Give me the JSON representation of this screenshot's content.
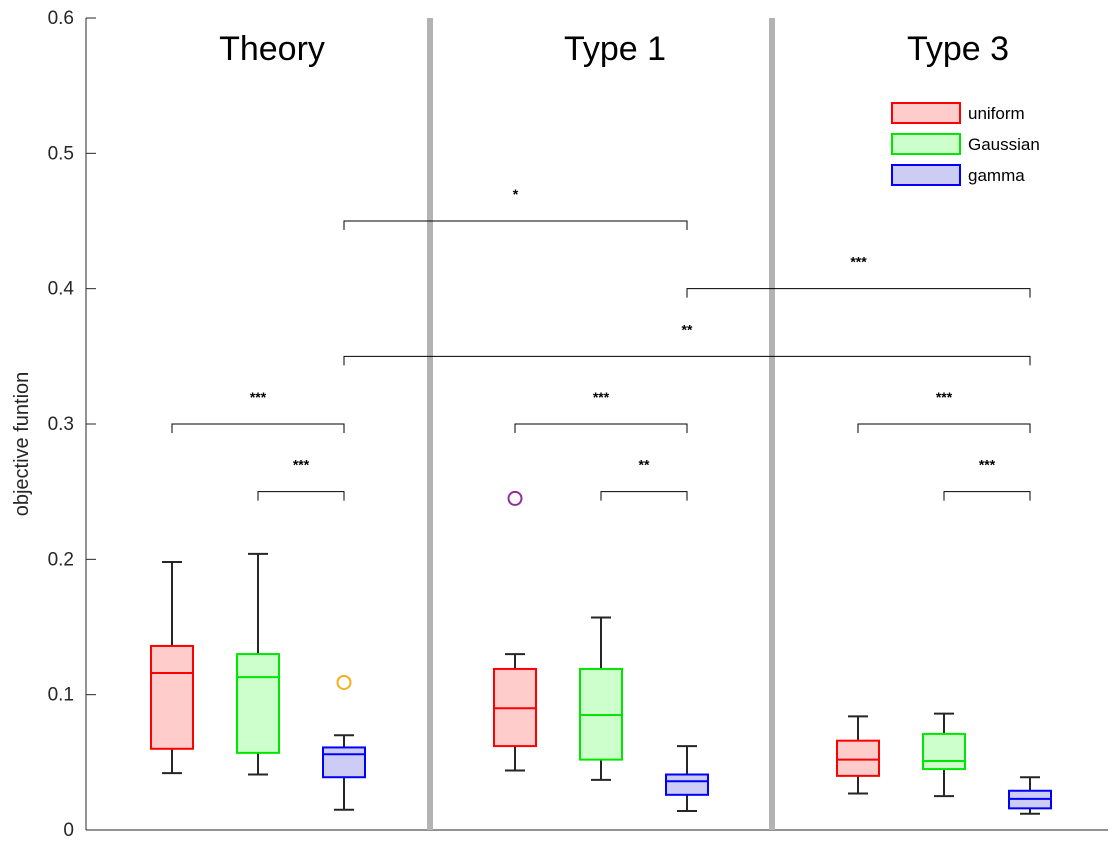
{
  "chart_data": {
    "type": "boxplot",
    "ylabel": "objective funtion",
    "ylim": [
      0,
      0.6
    ],
    "yticks": [
      {
        "value": 0,
        "label": "0"
      },
      {
        "value": 0.1,
        "label": "0.1"
      },
      {
        "value": 0.2,
        "label": "0.2"
      },
      {
        "value": 0.3,
        "label": "0.3"
      },
      {
        "value": 0.4,
        "label": "0.4"
      },
      {
        "value": 0.5,
        "label": "0.5"
      },
      {
        "value": 0.6,
        "label": "0.6"
      }
    ],
    "groups": [
      "Theory",
      "Type 1",
      "Type 3"
    ],
    "legend": {
      "position": "top-right",
      "entries": [
        {
          "name": "uniform",
          "edge": "#ff0000",
          "fill": "#ffcccc"
        },
        {
          "name": "Gaussian",
          "edge": "#00e600",
          "fill": "#ccffcc"
        },
        {
          "name": "gamma",
          "edge": "#0000ff",
          "fill": "#ccccf5"
        }
      ]
    },
    "boxes": [
      {
        "group": 0,
        "series": 0,
        "whisker_low": 0.042,
        "q1": 0.06,
        "median": 0.116,
        "q3": 0.136,
        "whisker_high": 0.198,
        "outliers": []
      },
      {
        "group": 0,
        "series": 1,
        "whisker_low": 0.041,
        "q1": 0.057,
        "median": 0.113,
        "q3": 0.13,
        "whisker_high": 0.204,
        "outliers": []
      },
      {
        "group": 0,
        "series": 2,
        "whisker_low": 0.015,
        "q1": 0.039,
        "median": 0.056,
        "q3": 0.061,
        "whisker_high": 0.07,
        "outliers": [
          {
            "value": 0.109,
            "color": "#f0b020"
          }
        ]
      },
      {
        "group": 1,
        "series": 0,
        "whisker_low": 0.044,
        "q1": 0.062,
        "median": 0.09,
        "q3": 0.119,
        "whisker_high": 0.13,
        "outliers": [
          {
            "value": 0.245,
            "color": "#8e2da0"
          }
        ]
      },
      {
        "group": 1,
        "series": 1,
        "whisker_low": 0.037,
        "q1": 0.052,
        "median": 0.085,
        "q3": 0.119,
        "whisker_high": 0.157,
        "outliers": []
      },
      {
        "group": 1,
        "series": 2,
        "whisker_low": 0.014,
        "q1": 0.026,
        "median": 0.036,
        "q3": 0.041,
        "whisker_high": 0.062,
        "outliers": []
      },
      {
        "group": 2,
        "series": 0,
        "whisker_low": 0.027,
        "q1": 0.04,
        "median": 0.052,
        "q3": 0.066,
        "whisker_high": 0.084,
        "outliers": []
      },
      {
        "group": 2,
        "series": 1,
        "whisker_low": 0.025,
        "q1": 0.045,
        "median": 0.051,
        "q3": 0.071,
        "whisker_high": 0.086,
        "outliers": []
      },
      {
        "group": 2,
        "series": 2,
        "whisker_low": 0.012,
        "q1": 0.016,
        "median": 0.023,
        "q3": 0.029,
        "whisker_high": 0.039,
        "outliers": []
      }
    ],
    "significance": [
      {
        "from_box": 2,
        "to_box": 5,
        "y": 0.45,
        "label": "*"
      },
      {
        "from_box": 5,
        "to_box": 8,
        "y": 0.4,
        "label": "***"
      },
      {
        "from_box": 2,
        "to_box": 8,
        "y": 0.35,
        "label": "**"
      },
      {
        "from_box": 0,
        "to_box": 2,
        "y": 0.3,
        "label": "***"
      },
      {
        "from_box": 1,
        "to_box": 2,
        "y": 0.25,
        "label": "***"
      },
      {
        "from_box": 3,
        "to_box": 5,
        "y": 0.3,
        "label": "***"
      },
      {
        "from_box": 4,
        "to_box": 5,
        "y": 0.25,
        "label": "**"
      },
      {
        "from_box": 6,
        "to_box": 8,
        "y": 0.3,
        "label": "***"
      },
      {
        "from_box": 7,
        "to_box": 8,
        "y": 0.25,
        "label": "***"
      }
    ],
    "grid": false
  }
}
